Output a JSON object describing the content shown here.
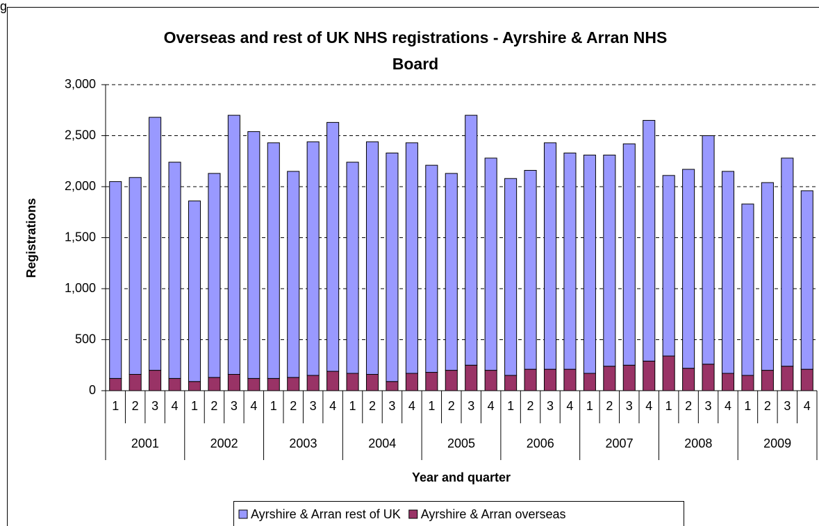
{
  "chart_data": {
    "type": "stacked_bar",
    "caption_fragment": "g",
    "title": [
      "Overseas and rest of UK NHS registrations - Ayrshire & Arran NHS",
      "Board"
    ],
    "x_label": "Year and quarter",
    "y_label": "Registrations",
    "categories": [
      "1",
      "2",
      "3",
      "4",
      "1",
      "2",
      "3",
      "4",
      "1",
      "2",
      "3",
      "4",
      "1",
      "2",
      "3",
      "4",
      "1",
      "2",
      "3",
      "4",
      "1",
      "2",
      "3",
      "4",
      "1",
      "2",
      "3",
      "4",
      "1",
      "2",
      "3",
      "4",
      "1",
      "2",
      "3",
      "4"
    ],
    "category_groups": [
      "2001",
      "2002",
      "2003",
      "2004",
      "2005",
      "2006",
      "2007",
      "2008",
      "2009"
    ],
    "series": [
      {
        "name": "Ayrshire & Arran overseas",
        "color": "#993366",
        "values": [
          120,
          160,
          200,
          120,
          90,
          130,
          160,
          120,
          120,
          130,
          150,
          190,
          170,
          160,
          90,
          170,
          180,
          200,
          250,
          200,
          150,
          210,
          210,
          210,
          170,
          240,
          250,
          290,
          340,
          220,
          260,
          170,
          150,
          200,
          240,
          210
        ]
      },
      {
        "name": "Ayrshire & Arran rest of UK",
        "color": "#9999ff",
        "values": [
          1930,
          1930,
          2480,
          2120,
          1770,
          2000,
          2540,
          2420,
          2310,
          2020,
          2290,
          2440,
          2070,
          2280,
          2240,
          2260,
          2030,
          1930,
          2450,
          2080,
          1930,
          1950,
          2220,
          2120,
          2140,
          2070,
          2170,
          2360,
          1770,
          1950,
          2240,
          1980,
          1680,
          1840,
          2040,
          1750
        ]
      }
    ],
    "legend_order": [
      1,
      0
    ],
    "ylim": [
      0,
      3000
    ],
    "yticks": [
      0,
      500,
      {
        "value": 1000,
        "label": "1,000"
      },
      {
        "value": 1500,
        "label": "1,500"
      },
      {
        "value": 2000,
        "label": "2,000"
      },
      {
        "value": 2500,
        "label": "2,500"
      },
      {
        "value": 3000,
        "label": "3,000"
      }
    ],
    "grid": true
  }
}
